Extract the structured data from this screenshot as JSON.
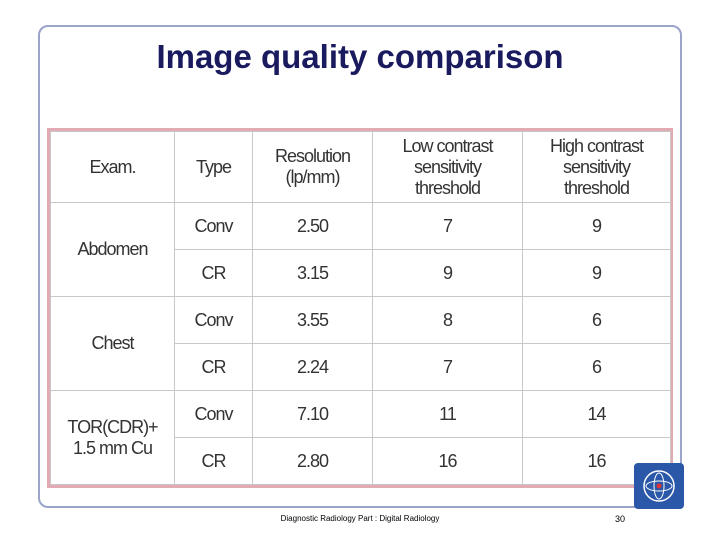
{
  "slide": {
    "title": "Image quality comparison",
    "footer": "Diagnostic Radiology Part : Digital Radiology",
    "page_number": "30"
  },
  "table": {
    "header": [
      "Exam.",
      "Type",
      "Resolution\n(lp/mm)",
      "Low contrast\nsensitivity\nthreshold",
      "High contrast\nsensitivity\nthreshold"
    ],
    "groups": [
      {
        "exam": "Abdomen",
        "rows": [
          [
            "Conv",
            "2.50",
            "7",
            "9"
          ],
          [
            "CR",
            "3.15",
            "9",
            "9"
          ]
        ]
      },
      {
        "exam": "Chest",
        "rows": [
          [
            "Conv",
            "3.55",
            "8",
            "6"
          ],
          [
            "CR",
            "2.24",
            "7",
            "6"
          ]
        ]
      },
      {
        "exam": "TOR(CDR)+\n1.5 mm Cu",
        "rows": [
          [
            "Conv",
            "7.10",
            "11",
            "14"
          ],
          [
            "CR",
            "2.80",
            "16",
            "16"
          ]
        ]
      }
    ]
  }
}
